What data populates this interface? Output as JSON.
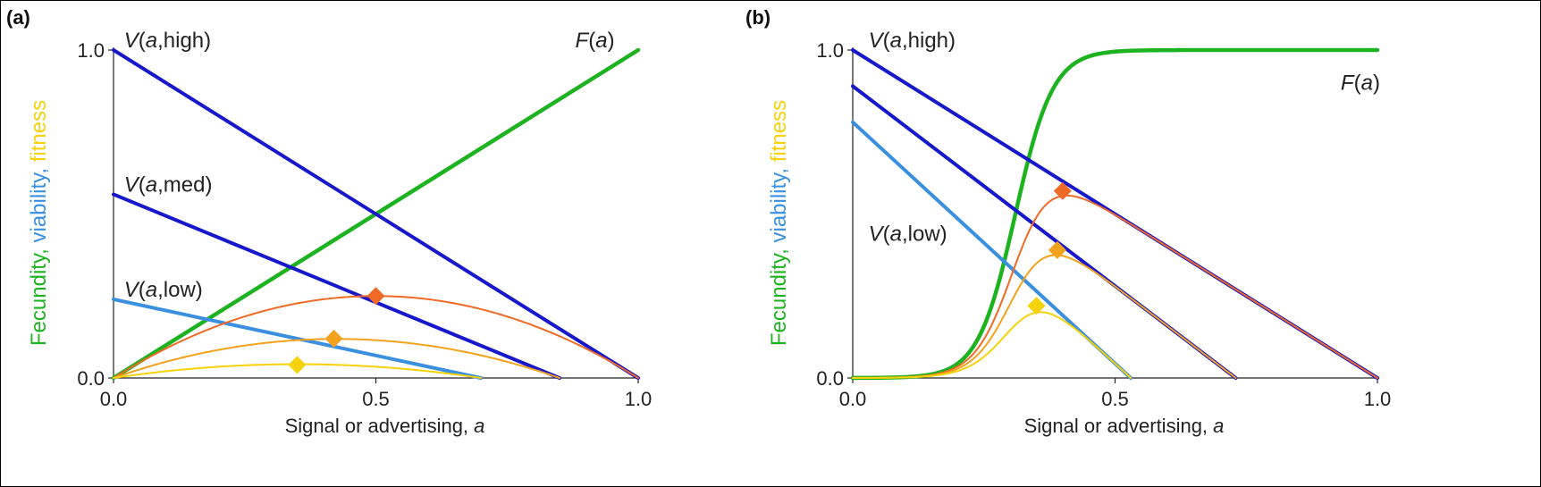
{
  "colors": {
    "fecundity": "#1db320",
    "viability": "#3a8fe0",
    "viability_dark": "#1717cc",
    "fitness": "#f5d20a",
    "fitness_mid": "#f2a21c",
    "fitness_high": "#ef6a25",
    "text": "#222222"
  },
  "chart_data": [
    {
      "panel": "(a)",
      "type": "line",
      "xlabel_parts": [
        "Signal or advertising, ",
        "a"
      ],
      "ylabel_parts": [
        {
          "text": "Fecundity, ",
          "role": "fecundity"
        },
        {
          "text": "viability, ",
          "role": "viability"
        },
        {
          "text": "fitness",
          "role": "fitness"
        }
      ],
      "xlim": [
        0,
        1
      ],
      "ylim": [
        0,
        1
      ],
      "x_ticks": [
        {
          "v": 0,
          "label": "0.0"
        },
        {
          "v": 0.5,
          "label": "0.5"
        },
        {
          "v": 1,
          "label": "1.0"
        }
      ],
      "y_ticks": [
        {
          "v": 0,
          "label": "0.0"
        },
        {
          "v": 1,
          "label": "1.0"
        }
      ],
      "series": [
        {
          "name": "F(a)",
          "role": "fecundity",
          "kind": "linear",
          "x0": 0,
          "y0": 0,
          "x1": 1,
          "y1": 1
        },
        {
          "name": "V(a,high)",
          "role": "viability_dark",
          "kind": "linear",
          "x0": 0,
          "y0": 1,
          "x1": 1,
          "y1": 0
        },
        {
          "name": "V(a,med)",
          "role": "viability_dark",
          "kind": "linear",
          "x0": 0,
          "y0": 0.56,
          "x1": 0.85,
          "y1": 0
        },
        {
          "name": "V(a,low)",
          "role": "viability",
          "kind": "linear",
          "x0": 0,
          "y0": 0.24,
          "x1": 0.7,
          "y1": 0
        },
        {
          "role": "fitness_high",
          "kind": "product",
          "F": "linear",
          "V_intercept": 1,
          "V_end": 1
        },
        {
          "role": "fitness_mid",
          "kind": "product",
          "F": "linear",
          "V_intercept": 0.56,
          "V_end": 0.85
        },
        {
          "role": "fitness",
          "kind": "product",
          "F": "linear",
          "V_intercept": 0.24,
          "V_end": 0.7
        }
      ],
      "optima": [
        {
          "x": 0.5,
          "y": 0.25,
          "role": "fitness_high"
        },
        {
          "x": 0.42,
          "y": 0.12,
          "role": "fitness_mid"
        },
        {
          "x": 0.35,
          "y": 0.04,
          "role": "fitness"
        }
      ],
      "labels": [
        {
          "series": "V(a,high)",
          "parts": [
            "V",
            "(",
            "a",
            ",high)"
          ],
          "at": [
            0.02,
            1.03
          ]
        },
        {
          "series": "V(a,med)",
          "parts": [
            "V",
            "(",
            "a",
            ",med)"
          ],
          "at": [
            0.02,
            0.59
          ]
        },
        {
          "series": "V(a,low)",
          "parts": [
            "V",
            "(",
            "a",
            ",low)"
          ],
          "at": [
            0.02,
            0.27
          ]
        },
        {
          "series": "F(a)",
          "parts": [
            "F",
            "(",
            "a",
            ")"
          ],
          "at": [
            0.88,
            1.03
          ]
        }
      ]
    },
    {
      "panel": "(b)",
      "type": "line",
      "xlabel_parts": [
        "Signal or advertising, ",
        "a"
      ],
      "ylabel_parts": [
        {
          "text": "Fecundity, ",
          "role": "fecundity"
        },
        {
          "text": "viability, ",
          "role": "viability"
        },
        {
          "text": "fitness",
          "role": "fitness"
        }
      ],
      "xlim": [
        0,
        1
      ],
      "ylim": [
        0,
        1
      ],
      "x_ticks": [
        {
          "v": 0,
          "label": "0.0"
        },
        {
          "v": 0.5,
          "label": "0.5"
        },
        {
          "v": 1,
          "label": "1.0"
        }
      ],
      "y_ticks": [
        {
          "v": 0,
          "label": "0.0"
        },
        {
          "v": 1,
          "label": "1.0"
        }
      ],
      "series": [
        {
          "name": "F(a)",
          "role": "fecundity",
          "kind": "logistic",
          "mid": 0.31,
          "k": 28
        },
        {
          "name": "V(a,high)",
          "role": "viability_dark",
          "kind": "linear",
          "x0": 0,
          "y0": 1,
          "x1": 1,
          "y1": 0
        },
        {
          "role": "viability_dark",
          "kind": "linear",
          "x0": 0,
          "y0": 0.89,
          "x1": 0.73,
          "y1": 0
        },
        {
          "name": "V(a,low)",
          "role": "viability",
          "kind": "linear",
          "x0": 0,
          "y0": 0.78,
          "x1": 0.53,
          "y1": 0
        },
        {
          "role": "fitness_high",
          "kind": "product",
          "F": "logistic",
          "V_intercept": 1,
          "V_end": 1
        },
        {
          "role": "fitness_mid",
          "kind": "product",
          "F": "logistic",
          "V_intercept": 0.89,
          "V_end": 0.73
        },
        {
          "role": "fitness",
          "kind": "product",
          "F": "logistic",
          "V_intercept": 0.78,
          "V_end": 0.53
        }
      ],
      "optima": [
        {
          "x": 0.4,
          "y": 0.57,
          "role": "fitness_high"
        },
        {
          "x": 0.39,
          "y": 0.39,
          "role": "fitness_mid"
        },
        {
          "x": 0.35,
          "y": 0.22,
          "role": "fitness"
        }
      ],
      "labels": [
        {
          "series": "V(a,high)",
          "parts": [
            "V",
            "(",
            "a",
            ",high)"
          ],
          "at": [
            0.03,
            1.03
          ]
        },
        {
          "series": "V(a,low)",
          "parts": [
            "V",
            "(",
            "a",
            ",low)"
          ],
          "at": [
            0.03,
            0.44
          ]
        },
        {
          "series": "F(a)",
          "parts": [
            "F",
            "(",
            "a",
            ")"
          ],
          "at": [
            0.93,
            0.9
          ]
        }
      ]
    }
  ]
}
